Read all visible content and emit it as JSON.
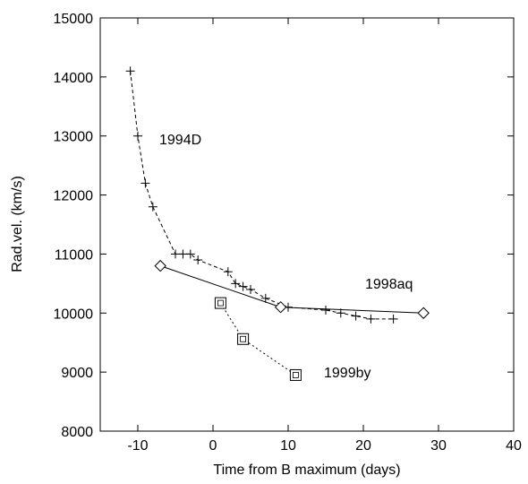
{
  "chart_data": {
    "type": "line",
    "title": "",
    "xlabel": "Time from B maximum (days)",
    "ylabel": "Rad.vel. (km/s)",
    "xlim": [
      -15,
      40
    ],
    "ylim": [
      8000,
      15000
    ],
    "xticks": [
      -10,
      0,
      10,
      20,
      30,
      40
    ],
    "yticks": [
      8000,
      9000,
      10000,
      11000,
      12000,
      13000,
      14000,
      15000
    ],
    "xtick_labels": [
      "-10",
      "0",
      "10",
      "20",
      "30",
      "40"
    ],
    "ytick_labels": [
      "8000",
      "9000",
      "10000",
      "11000",
      "12000",
      "13000",
      "14000",
      "15000"
    ],
    "grid": false,
    "series": [
      {
        "name": "1994D",
        "marker": "plus",
        "line": "dashed",
        "points": [
          [
            -11,
            14100
          ],
          [
            -10,
            13000
          ],
          [
            -9,
            12200
          ],
          [
            -8,
            11800
          ],
          [
            -5,
            11000
          ],
          [
            -4,
            11000
          ],
          [
            -3,
            11000
          ],
          [
            -2,
            10900
          ],
          [
            2,
            10700
          ],
          [
            3,
            10500
          ],
          [
            4,
            10450
          ],
          [
            5,
            10400
          ],
          [
            7,
            10250
          ],
          [
            10,
            10100
          ],
          [
            15,
            10050
          ],
          [
            17,
            10000
          ],
          [
            19,
            9950
          ],
          [
            21,
            9900
          ],
          [
            24,
            9900
          ]
        ]
      },
      {
        "name": "1998aq",
        "marker": "diamond",
        "line": "solid",
        "points": [
          [
            -7,
            10800
          ],
          [
            9,
            10100
          ],
          [
            28,
            10000
          ]
        ]
      },
      {
        "name": "1999by",
        "marker": "square",
        "line": "dotted",
        "points": [
          [
            1,
            10170
          ],
          [
            4,
            9560
          ],
          [
            11,
            8950
          ]
        ]
      }
    ]
  }
}
